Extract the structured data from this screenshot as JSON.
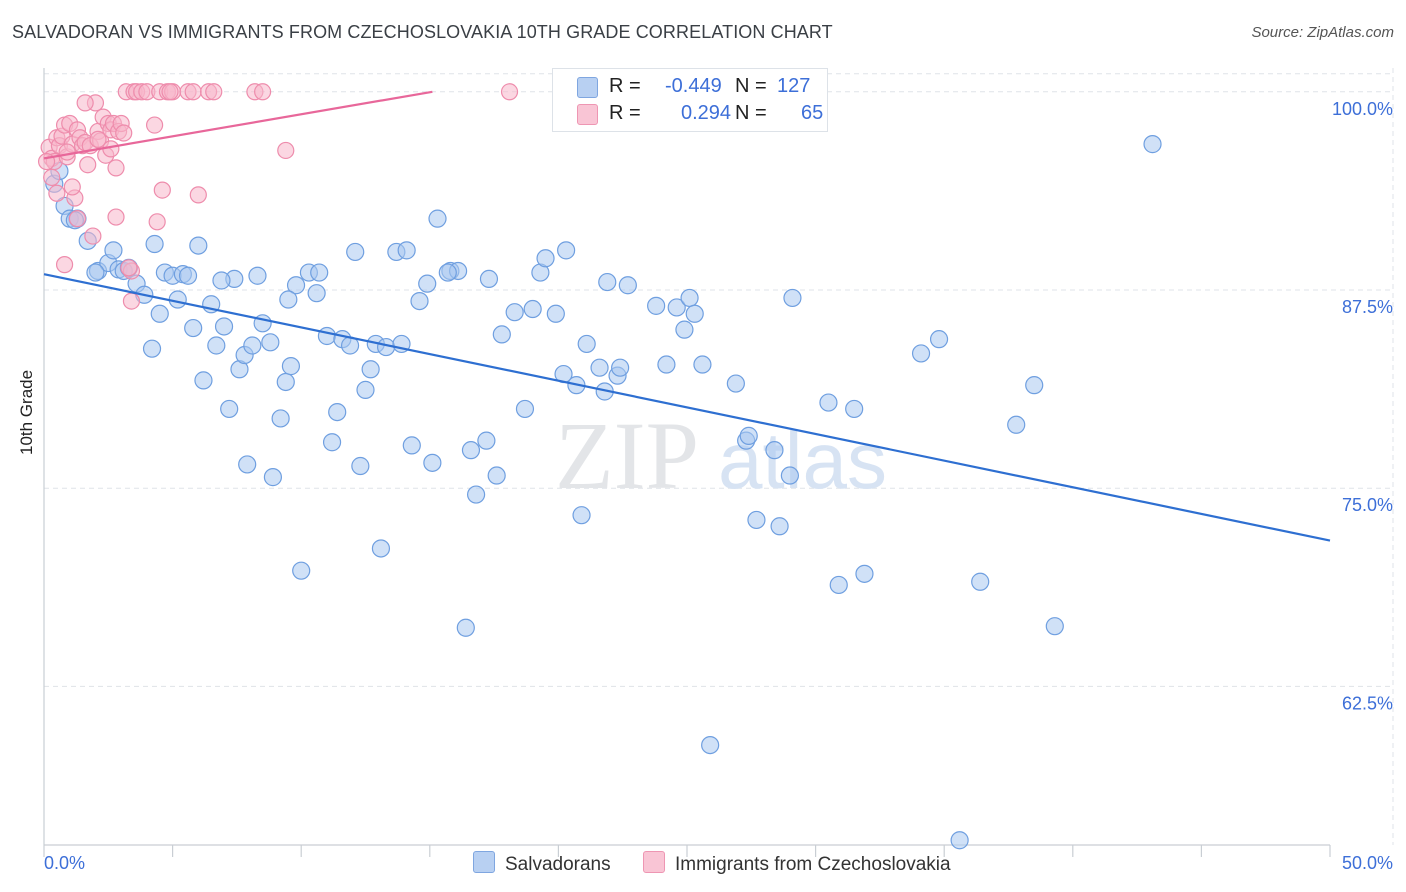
{
  "title": "SALVADORAN VS IMMIGRANTS FROM CZECHOSLOVAKIA 10TH GRADE CORRELATION CHART",
  "source": "Source: ZipAtlas.com",
  "watermark": {
    "part1": "ZIP",
    "part2": "atlas"
  },
  "legend": {
    "rows": [
      {
        "r_label": "R =",
        "r_value": "-0.449",
        "n_label": "N =",
        "n_value": "127"
      },
      {
        "r_label": "R =",
        "r_value": "0.294",
        "n_label": "N =",
        "n_value": "65"
      }
    ]
  },
  "bottom_legend": [
    "Salvadorans",
    "Immigrants from Czechoslovakia"
  ],
  "colors": {
    "blue_fill": "#a9c8f0",
    "blue_stroke": "#6f9fe0",
    "blue_line": "#2e6fd1",
    "pink_fill": "#f7b6cb",
    "pink_stroke": "#ee8cac",
    "pink_line": "#e8679a",
    "axis_label": "#3d6fd8",
    "grid": "#dfe3e8"
  },
  "chart_data": {
    "type": "scatter",
    "title": "SALVADORAN VS IMMIGRANTS FROM CZECHOSLOVAKIA 10TH GRADE CORRELATION CHART",
    "xlabel": "",
    "ylabel": "10th Grade",
    "xlim": [
      0,
      50
    ],
    "ylim": [
      52.5,
      101.5
    ],
    "x_tick_labels": [
      "0.0%",
      "50.0%"
    ],
    "y_ticks": [
      62.5,
      75.0,
      87.5,
      100.0
    ],
    "y_tick_labels": [
      "62.5%",
      "75.0%",
      "87.5%",
      "100.0%"
    ],
    "grid": true,
    "series": [
      {
        "name": "Salvadorans",
        "trend": {
          "x": [
            0,
            50
          ],
          "y": [
            88.5,
            71.7
          ]
        },
        "points": [
          [
            0.4,
            94.2
          ],
          [
            0.8,
            92.8
          ],
          [
            1.0,
            92.0
          ],
          [
            1.3,
            92.0
          ],
          [
            1.7,
            90.6
          ],
          [
            2.1,
            88.7
          ],
          [
            2.5,
            89.2
          ],
          [
            2.7,
            90.0
          ],
          [
            2.9,
            88.8
          ],
          [
            3.1,
            88.7
          ],
          [
            3.3,
            88.9
          ],
          [
            3.6,
            87.9
          ],
          [
            3.9,
            87.2
          ],
          [
            4.2,
            83.8
          ],
          [
            4.3,
            90.4
          ],
          [
            4.5,
            86.0
          ],
          [
            4.7,
            88.6
          ],
          [
            5.0,
            88.4
          ],
          [
            5.2,
            86.9
          ],
          [
            5.4,
            88.5
          ],
          [
            5.6,
            88.4
          ],
          [
            5.8,
            85.1
          ],
          [
            6.0,
            90.3
          ],
          [
            6.2,
            81.8
          ],
          [
            6.5,
            86.6
          ],
          [
            6.7,
            84.0
          ],
          [
            7.0,
            85.2
          ],
          [
            7.2,
            80.0
          ],
          [
            7.4,
            88.2
          ],
          [
            7.6,
            82.5
          ],
          [
            7.8,
            83.4
          ],
          [
            7.9,
            76.5
          ],
          [
            8.1,
            84.0
          ],
          [
            8.3,
            88.4
          ],
          [
            8.5,
            85.4
          ],
          [
            8.8,
            84.2
          ],
          [
            8.9,
            75.7
          ],
          [
            9.2,
            79.4
          ],
          [
            9.4,
            81.7
          ],
          [
            9.6,
            82.7
          ],
          [
            9.8,
            87.8
          ],
          [
            10.0,
            69.8
          ],
          [
            10.3,
            88.6
          ],
          [
            10.6,
            87.3
          ],
          [
            10.7,
            88.6
          ],
          [
            11.0,
            84.6
          ],
          [
            11.2,
            77.9
          ],
          [
            11.4,
            79.8
          ],
          [
            11.6,
            84.4
          ],
          [
            11.9,
            84.0
          ],
          [
            12.1,
            89.9
          ],
          [
            12.3,
            76.4
          ],
          [
            12.5,
            81.2
          ],
          [
            12.7,
            82.5
          ],
          [
            12.9,
            84.1
          ],
          [
            13.1,
            71.2
          ],
          [
            13.3,
            83.9
          ],
          [
            13.7,
            89.9
          ],
          [
            13.9,
            84.1
          ],
          [
            14.1,
            90.0
          ],
          [
            14.3,
            77.7
          ],
          [
            14.6,
            86.8
          ],
          [
            14.9,
            87.9
          ],
          [
            15.1,
            76.6
          ],
          [
            15.3,
            92.0
          ],
          [
            15.8,
            88.7
          ],
          [
            16.1,
            88.7
          ],
          [
            16.4,
            66.2
          ],
          [
            16.6,
            77.4
          ],
          [
            16.8,
            74.6
          ],
          [
            17.2,
            78.0
          ],
          [
            17.3,
            88.2
          ],
          [
            17.6,
            75.8
          ],
          [
            17.8,
            84.7
          ],
          [
            18.3,
            86.1
          ],
          [
            18.7,
            80.0
          ],
          [
            19.0,
            86.3
          ],
          [
            19.3,
            88.6
          ],
          [
            19.5,
            89.5
          ],
          [
            19.9,
            86.0
          ],
          [
            20.2,
            82.2
          ],
          [
            20.3,
            90.0
          ],
          [
            20.7,
            81.5
          ],
          [
            20.9,
            73.3
          ],
          [
            21.1,
            84.1
          ],
          [
            21.6,
            82.6
          ],
          [
            21.8,
            81.1
          ],
          [
            21.9,
            88.0
          ],
          [
            22.3,
            82.1
          ],
          [
            22.4,
            82.6
          ],
          [
            22.7,
            87.8
          ],
          [
            23.8,
            86.5
          ],
          [
            24.2,
            82.8
          ],
          [
            24.6,
            86.4
          ],
          [
            24.9,
            85.0
          ],
          [
            25.1,
            87.0
          ],
          [
            25.3,
            86.0
          ],
          [
            25.6,
            82.8
          ],
          [
            25.9,
            58.8
          ],
          [
            26.9,
            81.6
          ],
          [
            27.3,
            78.0
          ],
          [
            27.4,
            78.3
          ],
          [
            27.7,
            73.0
          ],
          [
            28.4,
            77.4
          ],
          [
            28.6,
            72.6
          ],
          [
            29.0,
            75.8
          ],
          [
            29.1,
            87.0
          ],
          [
            30.5,
            80.4
          ],
          [
            30.9,
            68.9
          ],
          [
            31.5,
            80.0
          ],
          [
            31.9,
            69.6
          ],
          [
            34.1,
            83.5
          ],
          [
            34.8,
            84.4
          ],
          [
            35.6,
            52.8
          ],
          [
            36.4,
            69.1
          ],
          [
            37.8,
            79.0
          ],
          [
            38.5,
            81.5
          ],
          [
            39.3,
            66.3
          ],
          [
            43.1,
            96.7
          ],
          [
            0.6,
            95.0
          ],
          [
            1.2,
            91.9
          ],
          [
            2.0,
            88.6
          ],
          [
            6.9,
            88.1
          ],
          [
            9.5,
            86.9
          ],
          [
            15.7,
            88.6
          ]
        ]
      },
      {
        "name": "Immigrants from Czechoslovakia",
        "trend": {
          "x": [
            0,
            15.1
          ],
          "y": [
            95.8,
            100.0
          ]
        },
        "points": [
          [
            0.2,
            96.5
          ],
          [
            0.3,
            95.8
          ],
          [
            0.4,
            95.6
          ],
          [
            0.5,
            97.1
          ],
          [
            0.6,
            96.6
          ],
          [
            0.7,
            97.2
          ],
          [
            0.8,
            97.9
          ],
          [
            0.9,
            95.9
          ],
          [
            1.0,
            98.0
          ],
          [
            1.1,
            96.7
          ],
          [
            1.2,
            93.3
          ],
          [
            1.3,
            97.6
          ],
          [
            1.4,
            97.1
          ],
          [
            1.5,
            96.6
          ],
          [
            1.6,
            96.8
          ],
          [
            1.7,
            95.4
          ],
          [
            1.8,
            96.6
          ],
          [
            1.9,
            90.9
          ],
          [
            2.0,
            99.3
          ],
          [
            2.1,
            97.5
          ],
          [
            2.2,
            96.9
          ],
          [
            2.3,
            98.4
          ],
          [
            2.4,
            96.0
          ],
          [
            2.5,
            98.0
          ],
          [
            2.6,
            97.6
          ],
          [
            2.7,
            98.0
          ],
          [
            2.8,
            95.2
          ],
          [
            2.9,
            97.5
          ],
          [
            3.0,
            98.0
          ],
          [
            3.1,
            97.4
          ],
          [
            3.2,
            100.0
          ],
          [
            3.4,
            88.7
          ],
          [
            3.5,
            100.0
          ],
          [
            3.6,
            100.0
          ],
          [
            3.8,
            100.0
          ],
          [
            4.0,
            100.0
          ],
          [
            4.3,
            97.9
          ],
          [
            4.4,
            91.8
          ],
          [
            4.5,
            100.0
          ],
          [
            4.6,
            93.8
          ],
          [
            4.8,
            100.0
          ],
          [
            5.0,
            100.0
          ],
          [
            5.6,
            100.0
          ],
          [
            5.8,
            100.0
          ],
          [
            6.0,
            93.5
          ],
          [
            6.4,
            100.0
          ],
          [
            6.6,
            100.0
          ],
          [
            8.2,
            100.0
          ],
          [
            8.5,
            100.0
          ],
          [
            9.4,
            96.3
          ],
          [
            18.1,
            100.0
          ],
          [
            0.1,
            95.6
          ],
          [
            0.3,
            94.6
          ],
          [
            0.5,
            93.6
          ],
          [
            0.8,
            89.1
          ],
          [
            1.1,
            94.0
          ],
          [
            1.3,
            92.0
          ],
          [
            1.6,
            99.3
          ],
          [
            2.1,
            97.0
          ],
          [
            2.6,
            96.4
          ],
          [
            3.3,
            88.9
          ],
          [
            3.4,
            86.8
          ],
          [
            2.8,
            92.1
          ],
          [
            4.9,
            100.0
          ],
          [
            0.9,
            96.2
          ]
        ]
      }
    ]
  }
}
